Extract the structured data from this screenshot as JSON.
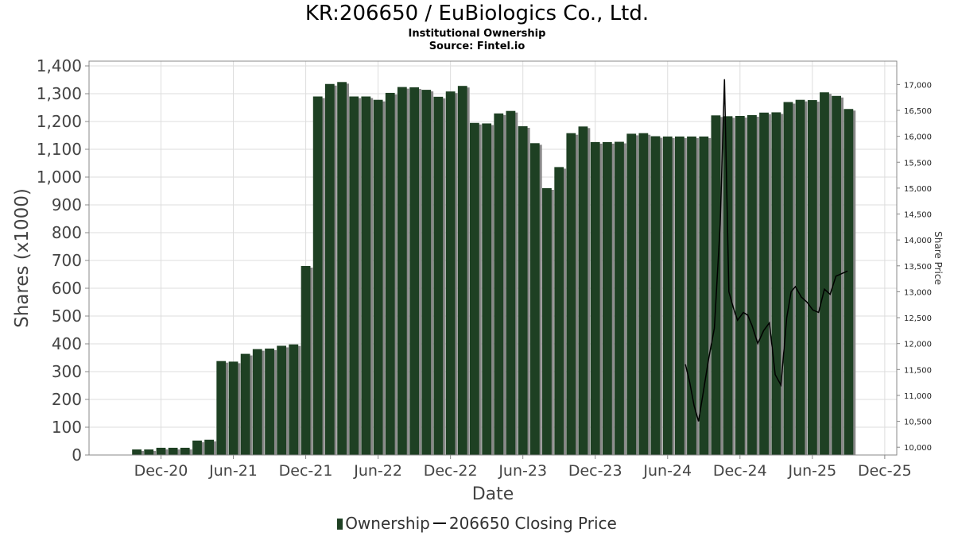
{
  "header": {
    "title": "KR:206650 / EuBiologics Co., Ltd.",
    "subtitle1": "Institutional Ownership",
    "subtitle2": "Source: Fintel.io"
  },
  "legend": {
    "ownership": "Ownership",
    "price": "206650 Closing Price"
  },
  "colors": {
    "bar": "#1e4023",
    "bar_shadow": "#888888",
    "price_line": "#000000",
    "grid": "#dddddd"
  },
  "chart_data": {
    "type": "bar",
    "title": "KR:206650 / EuBiologics Co., Ltd.",
    "xlabel": "Date",
    "ylabel": "Shares (x1000)",
    "y2label": "Share Price",
    "ylim": [
      0,
      1400
    ],
    "y2lim": [
      9850,
      17450
    ],
    "yticks": [
      0,
      100,
      200,
      300,
      400,
      500,
      600,
      700,
      800,
      900,
      1000,
      1100,
      1200,
      1300,
      1400
    ],
    "y2ticks": [
      10000,
      10500,
      11000,
      11500,
      12000,
      12500,
      13000,
      13500,
      14000,
      14500,
      15000,
      15500,
      16000,
      16500,
      17000
    ],
    "xticks": [
      {
        "label": "Dec-20",
        "t": 2020.917
      },
      {
        "label": "Jun-21",
        "t": 2021.417
      },
      {
        "label": "Dec-21",
        "t": 2021.917
      },
      {
        "label": "Jun-22",
        "t": 2022.417
      },
      {
        "label": "Dec-22",
        "t": 2022.917
      },
      {
        "label": "Jun-23",
        "t": 2023.417
      },
      {
        "label": "Dec-23",
        "t": 2023.917
      },
      {
        "label": "Jun-24",
        "t": 2024.417
      },
      {
        "label": "Dec-24",
        "t": 2024.917
      },
      {
        "label": "Jun-25",
        "t": 2025.417
      },
      {
        "label": "Dec-25",
        "t": 2025.917
      }
    ],
    "xlim": [
      2020.42,
      2026.0
    ],
    "grid": true,
    "legend_position": "bottom",
    "series": [
      {
        "name": "Ownership",
        "axis": "left",
        "points": [
          {
            "t": 2020.75,
            "v": 20
          },
          {
            "t": 2020.833,
            "v": 20
          },
          {
            "t": 2020.917,
            "v": 26
          },
          {
            "t": 2021.0,
            "v": 26
          },
          {
            "t": 2021.083,
            "v": 26
          },
          {
            "t": 2021.167,
            "v": 52
          },
          {
            "t": 2021.25,
            "v": 55
          },
          {
            "t": 2021.333,
            "v": 338
          },
          {
            "t": 2021.417,
            "v": 336
          },
          {
            "t": 2021.5,
            "v": 364
          },
          {
            "t": 2021.583,
            "v": 381
          },
          {
            "t": 2021.667,
            "v": 383
          },
          {
            "t": 2021.75,
            "v": 393
          },
          {
            "t": 2021.833,
            "v": 398
          },
          {
            "t": 2021.917,
            "v": 680
          },
          {
            "t": 2022.0,
            "v": 1290
          },
          {
            "t": 2022.083,
            "v": 1335
          },
          {
            "t": 2022.167,
            "v": 1342
          },
          {
            "t": 2022.25,
            "v": 1290
          },
          {
            "t": 2022.333,
            "v": 1290
          },
          {
            "t": 2022.417,
            "v": 1278
          },
          {
            "t": 2022.5,
            "v": 1303
          },
          {
            "t": 2022.583,
            "v": 1324
          },
          {
            "t": 2022.667,
            "v": 1323
          },
          {
            "t": 2022.75,
            "v": 1314
          },
          {
            "t": 2022.833,
            "v": 1289
          },
          {
            "t": 2022.917,
            "v": 1308
          },
          {
            "t": 2023.0,
            "v": 1328
          },
          {
            "t": 2023.083,
            "v": 1195
          },
          {
            "t": 2023.167,
            "v": 1193
          },
          {
            "t": 2023.25,
            "v": 1229
          },
          {
            "t": 2023.333,
            "v": 1238
          },
          {
            "t": 2023.417,
            "v": 1183
          },
          {
            "t": 2023.5,
            "v": 1122
          },
          {
            "t": 2023.583,
            "v": 960
          },
          {
            "t": 2023.667,
            "v": 1036
          },
          {
            "t": 2023.75,
            "v": 1158
          },
          {
            "t": 2023.833,
            "v": 1182
          },
          {
            "t": 2023.917,
            "v": 1126
          },
          {
            "t": 2024.0,
            "v": 1126
          },
          {
            "t": 2024.083,
            "v": 1127
          },
          {
            "t": 2024.167,
            "v": 1156
          },
          {
            "t": 2024.25,
            "v": 1158
          },
          {
            "t": 2024.333,
            "v": 1147
          },
          {
            "t": 2024.417,
            "v": 1146
          },
          {
            "t": 2024.5,
            "v": 1146
          },
          {
            "t": 2024.583,
            "v": 1146
          },
          {
            "t": 2024.667,
            "v": 1146
          },
          {
            "t": 2024.75,
            "v": 1222
          },
          {
            "t": 2024.833,
            "v": 1219
          },
          {
            "t": 2024.917,
            "v": 1220
          },
          {
            "t": 2025.0,
            "v": 1223
          },
          {
            "t": 2025.083,
            "v": 1232
          },
          {
            "t": 2025.167,
            "v": 1233
          },
          {
            "t": 2025.25,
            "v": 1270
          },
          {
            "t": 2025.333,
            "v": 1278
          },
          {
            "t": 2025.417,
            "v": 1277
          },
          {
            "t": 2025.5,
            "v": 1305
          },
          {
            "t": 2025.583,
            "v": 1292
          },
          {
            "t": 2025.667,
            "v": 1245
          }
        ]
      },
      {
        "name": "206650 Closing Price",
        "axis": "right",
        "points": [
          {
            "t": 2024.54,
            "v": 11600
          },
          {
            "t": 2024.57,
            "v": 11250
          },
          {
            "t": 2024.6,
            "v": 10800
          },
          {
            "t": 2024.63,
            "v": 10500
          },
          {
            "t": 2024.66,
            "v": 11000
          },
          {
            "t": 2024.7,
            "v": 11700
          },
          {
            "t": 2024.74,
            "v": 12300
          },
          {
            "t": 2024.78,
            "v": 14300
          },
          {
            "t": 2024.81,
            "v": 17100
          },
          {
            "t": 2024.84,
            "v": 13000
          },
          {
            "t": 2024.87,
            "v": 12700
          },
          {
            "t": 2024.9,
            "v": 12450
          },
          {
            "t": 2024.94,
            "v": 12600
          },
          {
            "t": 2024.97,
            "v": 12550
          },
          {
            "t": 2025.0,
            "v": 12350
          },
          {
            "t": 2025.04,
            "v": 12000
          },
          {
            "t": 2025.08,
            "v": 12250
          },
          {
            "t": 2025.12,
            "v": 12400
          },
          {
            "t": 2025.16,
            "v": 11400
          },
          {
            "t": 2025.2,
            "v": 11200
          },
          {
            "t": 2025.24,
            "v": 12500
          },
          {
            "t": 2025.27,
            "v": 13000
          },
          {
            "t": 2025.3,
            "v": 13100
          },
          {
            "t": 2025.34,
            "v": 12900
          },
          {
            "t": 2025.38,
            "v": 12800
          },
          {
            "t": 2025.42,
            "v": 12650
          },
          {
            "t": 2025.46,
            "v": 12600
          },
          {
            "t": 2025.5,
            "v": 13050
          },
          {
            "t": 2025.54,
            "v": 12950
          },
          {
            "t": 2025.58,
            "v": 13300
          },
          {
            "t": 2025.62,
            "v": 13350
          },
          {
            "t": 2025.66,
            "v": 13400
          }
        ]
      }
    ]
  }
}
